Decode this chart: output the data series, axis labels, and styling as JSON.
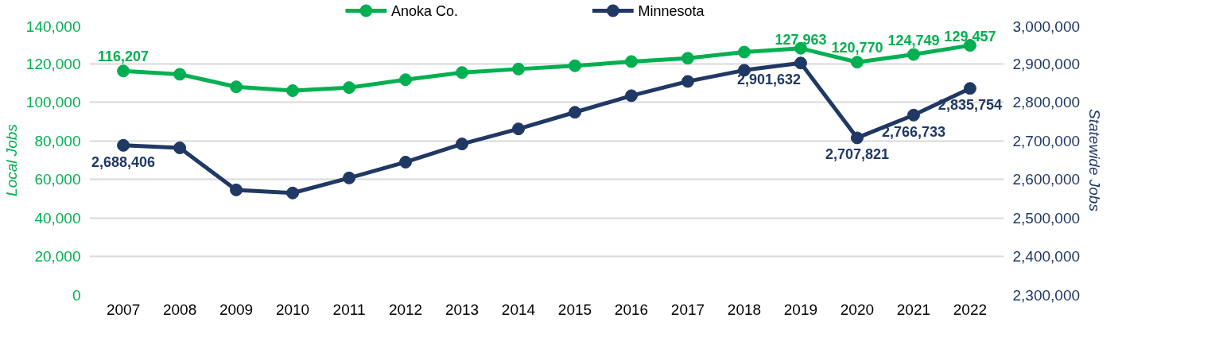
{
  "chart_data": {
    "type": "line",
    "ylabel": "Local Jobs",
    "y2label": "Statewide Jobs",
    "categories": [
      "2007",
      "2008",
      "2009",
      "2010",
      "2011",
      "2012",
      "2013",
      "2014",
      "2015",
      "2016",
      "2017",
      "2018",
      "2019",
      "2020",
      "2021",
      "2022"
    ],
    "series": [
      {
        "name": "Anoka Co.",
        "color": "#00b050",
        "values": [
          116207,
          114500,
          108000,
          106000,
          107600,
          111700,
          115400,
          117200,
          118900,
          121100,
          122800,
          126000,
          127963,
          120770,
          124749,
          129457
        ],
        "value_labels": [
          "116,207",
          null,
          null,
          null,
          null,
          null,
          null,
          null,
          null,
          null,
          null,
          null,
          "127,963",
          "120,770",
          "124,749",
          "129,457"
        ]
      },
      {
        "name": "Minnesota",
        "color": "#203864",
        "axis": "y2",
        "values": [
          2688406,
          2682000,
          2573000,
          2565000,
          2604000,
          2645000,
          2692000,
          2731000,
          2774000,
          2817000,
          2854000,
          2883000,
          2901632,
          2707821,
          2766733,
          2835754
        ],
        "value_labels": [
          "2,688,406",
          null,
          null,
          null,
          null,
          null,
          null,
          null,
          null,
          null,
          null,
          null,
          "2,901,632",
          "2,707,821",
          "2,766,733",
          "2,835,754"
        ]
      }
    ],
    "ylim": [
      0,
      140000
    ],
    "yticks": [
      {
        "value": 0,
        "label": "0"
      },
      {
        "value": 20000,
        "label": "20,000"
      },
      {
        "value": 40000,
        "label": "40,000"
      },
      {
        "value": 60000,
        "label": "60,000"
      },
      {
        "value": 80000,
        "label": "80,000"
      },
      {
        "value": 100000,
        "label": "100,000"
      },
      {
        "value": 120000,
        "label": "120,000"
      },
      {
        "value": 140000,
        "label": "140,000"
      }
    ],
    "y2lim": [
      2300000,
      3000000
    ],
    "y2ticks": [
      {
        "value": 2300000,
        "label": "2,300,000"
      },
      {
        "value": 2400000,
        "label": "2,400,000"
      },
      {
        "value": 2500000,
        "label": "2,500,000"
      },
      {
        "value": 2600000,
        "label": "2,600,000"
      },
      {
        "value": 2700000,
        "label": "2,700,000"
      },
      {
        "value": 2800000,
        "label": "2,800,000"
      },
      {
        "value": 2900000,
        "label": "2,900,000"
      },
      {
        "value": 3000000,
        "label": "3,000,000"
      }
    ],
    "grid": "y",
    "legend": "top",
    "marker": "circle",
    "line_style": "solid"
  }
}
